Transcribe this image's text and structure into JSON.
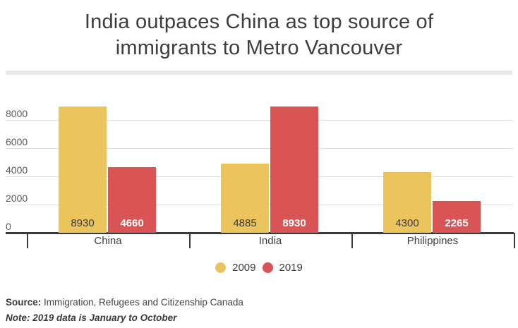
{
  "header": {
    "title_lines": [
      "India outpaces China as top source of",
      "immigrants to Metro Vancouver"
    ]
  },
  "chart_data": {
    "type": "bar",
    "title": "India outpaces China as top source of immigrants to Metro Vancouver",
    "categories": [
      "China",
      "India",
      "Philippines"
    ],
    "series": [
      {
        "name": "2009",
        "color": "#ECC45E",
        "label_color": "#3c3c3c",
        "label_bold": false,
        "values": [
          8930,
          4885,
          4300
        ]
      },
      {
        "name": "2019",
        "color": "#D95454",
        "label_color": "#ffffff",
        "label_bold": true,
        "values": [
          4660,
          8930,
          2265
        ]
      }
    ],
    "y_ticks": [
      0,
      2000,
      4000,
      6000,
      8000
    ],
    "ylim": [
      0,
      10000
    ],
    "grid": true,
    "bar_value_labels": true,
    "legend_position": "bottom"
  },
  "footer": {
    "source_label": "Source:",
    "source_text": " Immigration, Refugees and Citizenship Canada",
    "note": "Note: 2019 data is January to October"
  }
}
